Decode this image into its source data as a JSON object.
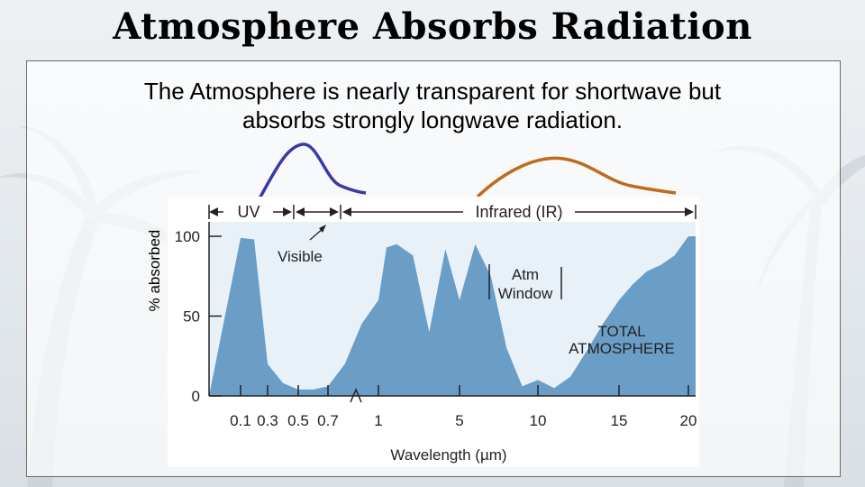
{
  "slide": {
    "title": "Atmosphere Absorbs Radiation",
    "subtitle_line1": "The Atmosphere is nearly transparent for shortwave but",
    "subtitle_line2": "absorbs strongly longwave radiation."
  },
  "colors": {
    "absorption_fill": "#6a9ec6",
    "shortwave_curve": "#3a3aa6",
    "longwave_curve": "#c06a1c"
  },
  "chart_data": {
    "type": "area",
    "ylabel": "% absorbed",
    "xlabel": "Wavelength (µm)",
    "ylim": [
      0,
      100
    ],
    "y_ticks": [
      "0",
      "50",
      "100"
    ],
    "x_ticks": [
      "0.1",
      "0.3",
      "0.5",
      "0.7",
      "1",
      "5",
      "10",
      "15",
      "20"
    ],
    "bands": {
      "uv": "UV",
      "infrared": "Infrared (IR)"
    },
    "annotations": {
      "visible": "Visible",
      "atm_window_line1": "Atm",
      "atm_window_line2": "Window",
      "total_line1": "TOTAL",
      "total_line2": "ATMOSPHERE"
    },
    "series": [
      {
        "name": "TOTAL ATMOSPHERE",
        "x": [
          "0.1",
          "0.2",
          "0.3",
          "0.4",
          "0.5",
          "0.6",
          "0.7",
          "0.8",
          "0.9",
          "1",
          "1.4",
          "1.9",
          "2.7",
          "3.5",
          "4.3",
          "5",
          "6",
          "7",
          "8",
          "9",
          "10",
          "11",
          "12",
          "13",
          "14",
          "15",
          "16",
          "17",
          "18",
          "19",
          "20"
        ],
        "values": [
          99,
          98,
          20,
          8,
          4,
          4,
          6,
          20,
          45,
          60,
          93,
          95,
          88,
          40,
          92,
          60,
          95,
          75,
          30,
          6,
          10,
          5,
          12,
          28,
          45,
          60,
          70,
          78,
          82,
          88,
          100
        ]
      }
    ]
  }
}
